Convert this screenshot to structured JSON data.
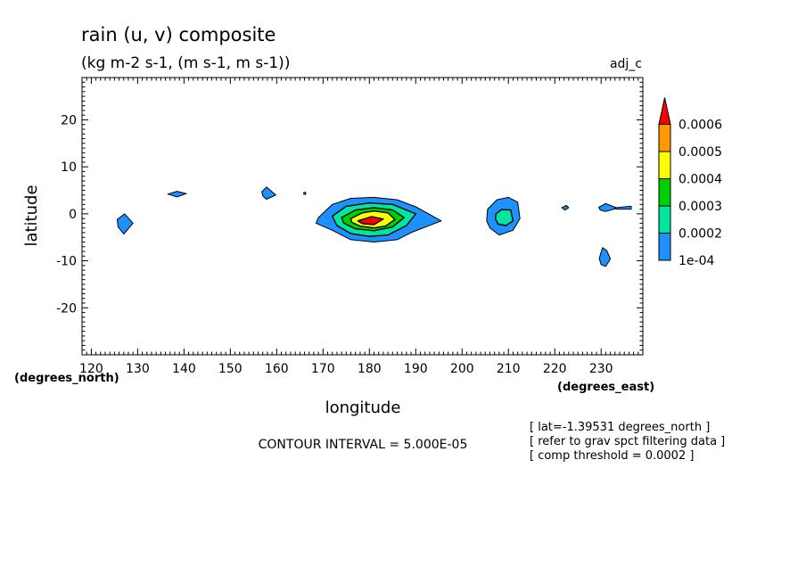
{
  "chart_data": {
    "type": "contour",
    "title": "rain (u, v) composite",
    "subtitle": "(kg m-2 s-1, (m s-1, m s-1))",
    "dataset_label": "adj_c",
    "xlabel": "longitude",
    "ylabel": "latitude",
    "x_units": "(degrees_east)",
    "y_units": "(degrees_north)",
    "xlim": [
      118,
      239
    ],
    "ylim": [
      -30,
      29
    ],
    "x_ticks": [
      120,
      130,
      140,
      150,
      160,
      170,
      180,
      190,
      200,
      210,
      220,
      230
    ],
    "y_ticks": [
      -20,
      -10,
      0,
      10,
      20
    ],
    "contour_interval_text": "CONTOUR INTERVAL = 5.000E-05",
    "colorbar": {
      "labels": [
        "1e-04",
        "0.0002",
        "0.0003",
        "0.0004",
        "0.0005",
        "0.0006"
      ],
      "colors": [
        "#1e90ff",
        "#00e5a0",
        "#00d000",
        "#ffff00",
        "#ff9900",
        "#ff0000"
      ]
    },
    "notes": [
      "[ lat=-1.39531 degrees_north ]",
      "[ refer to grav spct filtering data ]",
      "[ comp threshold = 0.0002 ]"
    ],
    "features": [
      {
        "name": "blob-127",
        "level": 1,
        "points": [
          [
            125.6,
            -1.2
          ],
          [
            127.2,
            0
          ],
          [
            129,
            -2
          ],
          [
            127,
            -4.3
          ],
          [
            125.8,
            -2.8
          ]
        ]
      },
      {
        "name": "blob-138",
        "level": 1,
        "points": [
          [
            136.5,
            4.2
          ],
          [
            138.5,
            4.8
          ],
          [
            140.5,
            4.3
          ],
          [
            138.5,
            3.6
          ]
        ]
      },
      {
        "name": "blob-158",
        "level": 1,
        "points": [
          [
            156.8,
            4.7
          ],
          [
            157.8,
            5.7
          ],
          [
            159.8,
            4
          ],
          [
            157.8,
            3.1
          ],
          [
            157,
            3.8
          ]
        ]
      },
      {
        "name": "blob-166",
        "level": 1,
        "points": [
          [
            165.8,
            4.5
          ],
          [
            166.2,
            4.6
          ],
          [
            166.3,
            4.2
          ],
          [
            165.9,
            4.1
          ]
        ]
      },
      {
        "name": "blob-180-L1",
        "level": 1,
        "points": [
          [
            169,
            -0.8
          ],
          [
            172,
            2
          ],
          [
            176,
            3.3
          ],
          [
            181,
            3.5
          ],
          [
            186,
            3
          ],
          [
            190,
            1.5
          ],
          [
            195.5,
            -1.5
          ],
          [
            189,
            -4
          ],
          [
            186,
            -5.5
          ],
          [
            181,
            -6
          ],
          [
            176,
            -5.5
          ],
          [
            172,
            -3.5
          ],
          [
            168.5,
            -2
          ]
        ]
      },
      {
        "name": "blob-180-L2",
        "level": 2,
        "points": [
          [
            172,
            -0.5
          ],
          [
            175,
            1.6
          ],
          [
            180,
            2.3
          ],
          [
            185,
            2
          ],
          [
            190,
            0
          ],
          [
            188,
            -2.5
          ],
          [
            184,
            -4.5
          ],
          [
            180,
            -4.8
          ],
          [
            176,
            -4.2
          ],
          [
            173,
            -2.5
          ]
        ]
      },
      {
        "name": "blob-180-L3",
        "level": 3,
        "points": [
          [
            174,
            -0.8
          ],
          [
            177,
            0.8
          ],
          [
            181,
            1.3
          ],
          [
            185,
            0.8
          ],
          [
            187.5,
            -0.8
          ],
          [
            185,
            -2.8
          ],
          [
            181,
            -3.6
          ],
          [
            177,
            -3.2
          ],
          [
            174.5,
            -2
          ]
        ]
      },
      {
        "name": "blob-180-L4",
        "level": 4,
        "points": [
          [
            176,
            -1
          ],
          [
            178.5,
            0.2
          ],
          [
            181,
            0.6
          ],
          [
            184,
            0.2
          ],
          [
            185.5,
            -1.2
          ],
          [
            183.5,
            -2.6
          ],
          [
            181,
            -3
          ],
          [
            178,
            -2.6
          ],
          [
            176.2,
            -1.8
          ]
        ]
      },
      {
        "name": "blob-180-L6",
        "level": 6,
        "points": [
          [
            177.5,
            -1.5
          ],
          [
            180.5,
            -0.6
          ],
          [
            183,
            -1.1
          ],
          [
            181,
            -2.3
          ],
          [
            178.5,
            -2.1
          ]
        ]
      },
      {
        "name": "blob-209-L1",
        "level": 1,
        "points": [
          [
            205.5,
            1
          ],
          [
            207.5,
            3
          ],
          [
            210,
            3.5
          ],
          [
            212,
            2.5
          ],
          [
            212.5,
            -1
          ],
          [
            211,
            -3.5
          ],
          [
            208,
            -4.5
          ],
          [
            206,
            -3
          ],
          [
            205.3,
            -1.5
          ]
        ]
      },
      {
        "name": "blob-209-L2",
        "level": 2,
        "points": [
          [
            207.3,
            0
          ],
          [
            208.5,
            0.9
          ],
          [
            210.5,
            0.8
          ],
          [
            211,
            -1.5
          ],
          [
            209.5,
            -2.5
          ],
          [
            207.8,
            -2.2
          ],
          [
            207.2,
            -1.1
          ]
        ]
      },
      {
        "name": "blob-222",
        "level": 1,
        "points": [
          [
            221.5,
            1.3
          ],
          [
            222.5,
            1.8
          ],
          [
            223,
            1.3
          ],
          [
            222.2,
            0.8
          ]
        ]
      },
      {
        "name": "blob-231",
        "level": 1,
        "points": [
          [
            229.5,
            1.4
          ],
          [
            231,
            2.2
          ],
          [
            233.5,
            1.2
          ],
          [
            231,
            0.5
          ],
          [
            229.8,
            0.8
          ]
        ]
      },
      {
        "name": "blob-235",
        "level": 1,
        "points": [
          [
            233,
            1.3
          ],
          [
            236.5,
            1.6
          ],
          [
            236.5,
            1
          ],
          [
            233.2,
            1
          ]
        ]
      },
      {
        "name": "blob-231-south",
        "level": 1,
        "points": [
          [
            229.6,
            -9.5
          ],
          [
            230.3,
            -7.2
          ],
          [
            231.2,
            -7.8
          ],
          [
            232,
            -9.6
          ],
          [
            231,
            -11.2
          ],
          [
            230,
            -10.8
          ]
        ]
      }
    ]
  }
}
